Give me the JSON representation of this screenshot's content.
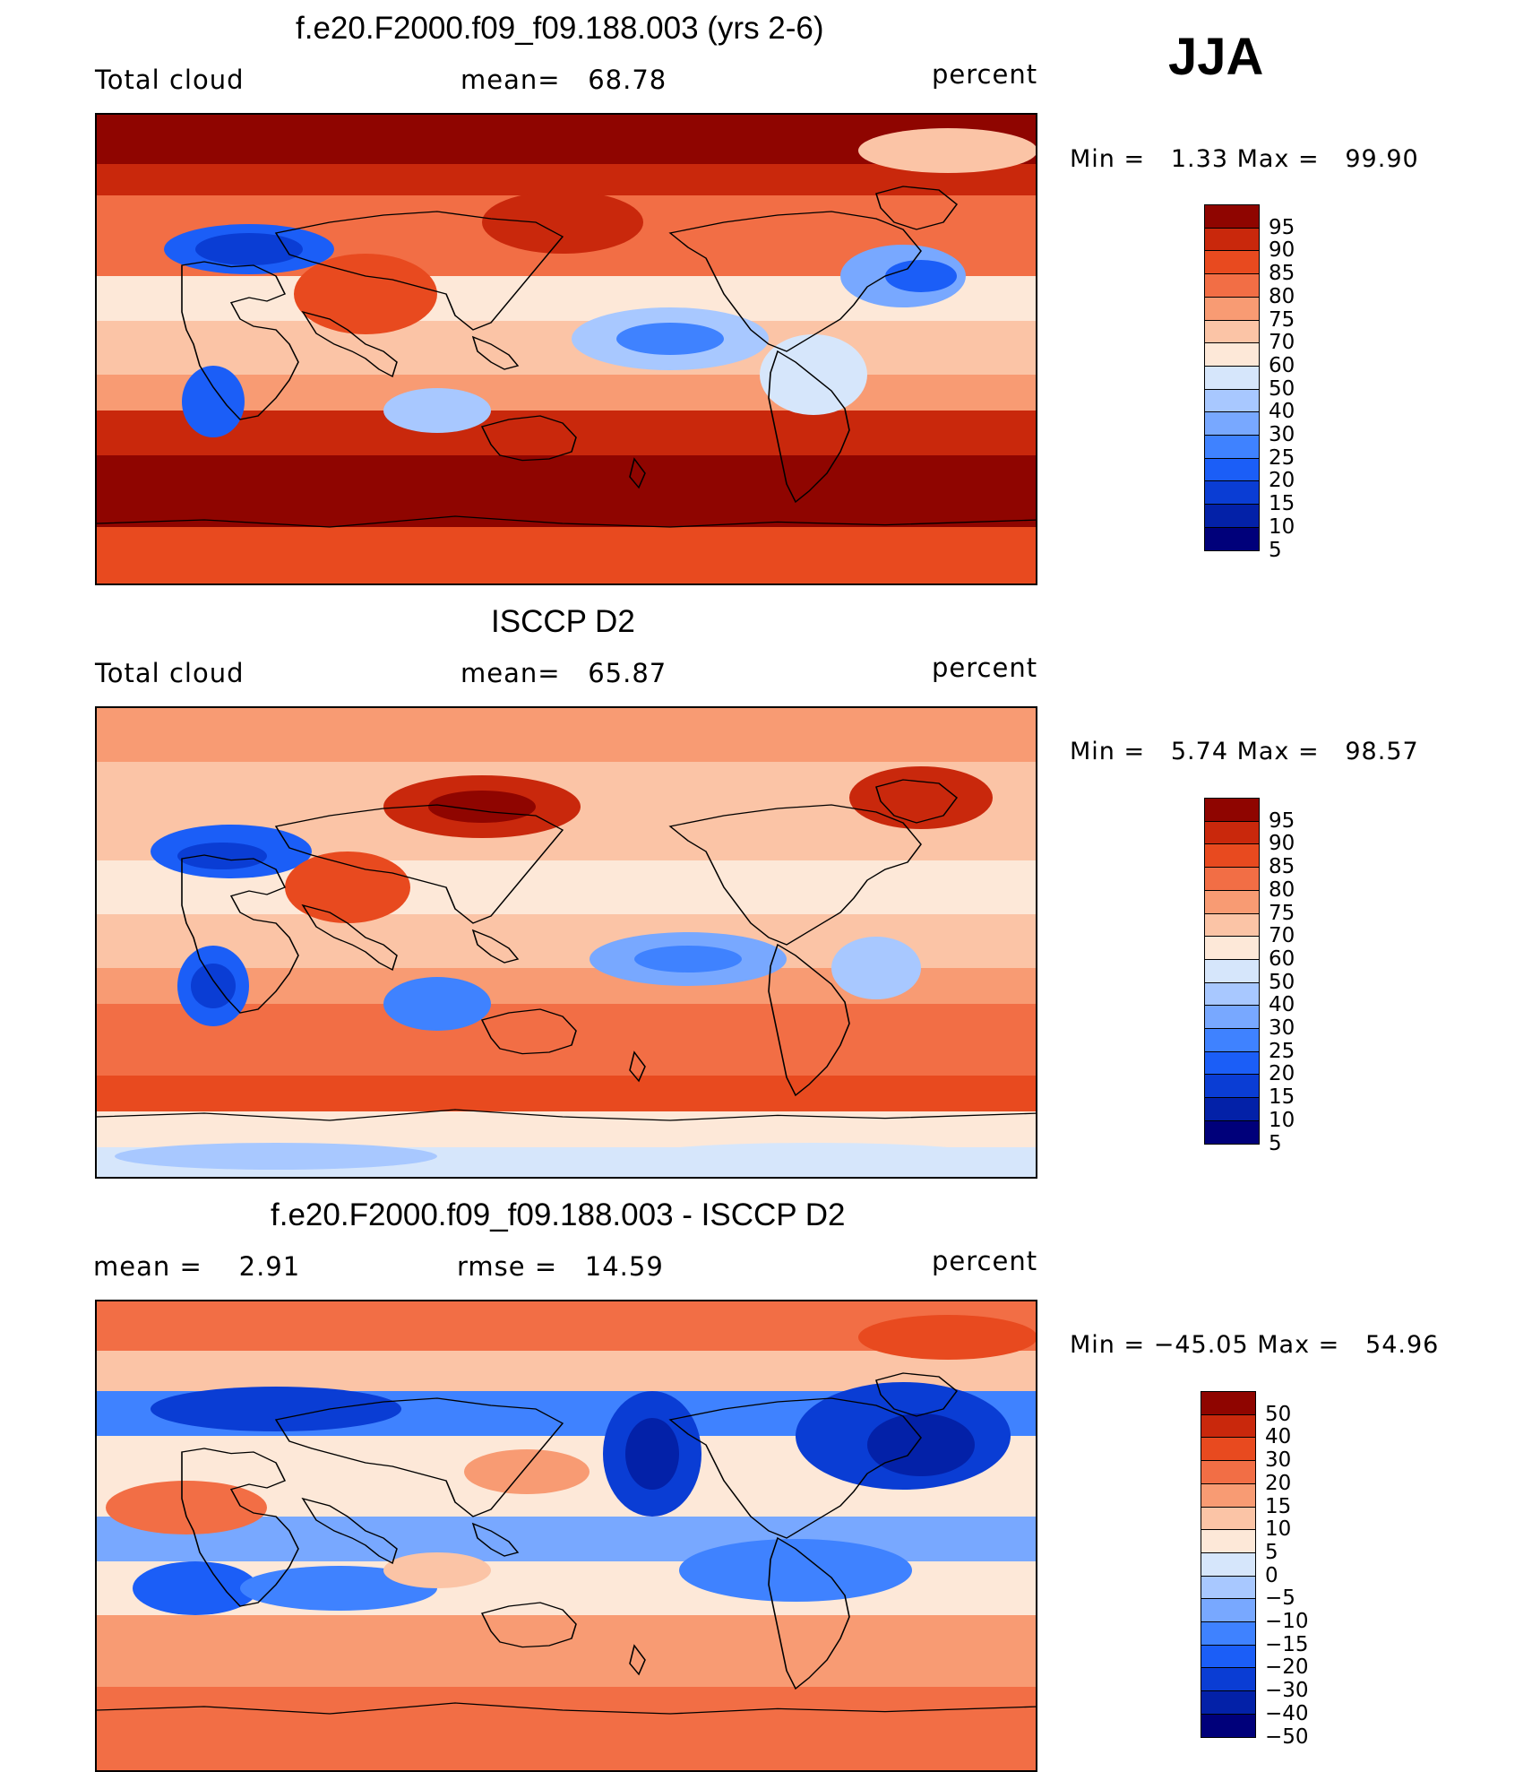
{
  "season": "JJA",
  "colors": {
    "sequential": [
      "#00007a",
      "#0321a8",
      "#0a3dd4",
      "#1b5ef7",
      "#3f82ff",
      "#78a8ff",
      "#a8c8ff",
      "#d6e6fb",
      "#fde8d8",
      "#fbc4a6",
      "#f89b73",
      "#f26e45",
      "#e84a1f",
      "#c9280c",
      "#8f0500"
    ],
    "diverging": [
      "#00007a",
      "#0321a8",
      "#0a3dd4",
      "#1b5ef7",
      "#3f82ff",
      "#78a8ff",
      "#a8c8ff",
      "#d6e6fb",
      "#fde8d8",
      "#fbc4a6",
      "#f89b73",
      "#f26e45",
      "#e84a1f",
      "#c9280c",
      "#8f0500"
    ]
  },
  "panels": [
    {
      "title": "f.e20.F2000.f09_f09.188.003 (yrs 2-6)",
      "left": "Total cloud",
      "center": "mean=   68.78",
      "right": "percent",
      "min_label": "Min =",
      "min": "1.33",
      "max_label": "Max =",
      "max": "99.90",
      "colorbar_labels": [
        "95",
        "90",
        "85",
        "80",
        "75",
        "70",
        "60",
        "50",
        "40",
        "30",
        "25",
        "20",
        "15",
        "10",
        "5"
      ],
      "palette": "sequential"
    },
    {
      "title": "ISCCP D2",
      "left": "Total cloud",
      "center": "mean=   65.87",
      "right": "percent",
      "min_label": "Min =",
      "min": "5.74",
      "max_label": "Max =",
      "max": "98.57",
      "colorbar_labels": [
        "95",
        "90",
        "85",
        "80",
        "75",
        "70",
        "60",
        "50",
        "40",
        "30",
        "25",
        "20",
        "15",
        "10",
        "5"
      ],
      "palette": "sequential"
    },
    {
      "title": "f.e20.F2000.f09_f09.188.003 - ISCCP D2",
      "left": "mean =    2.91",
      "center": "rmse =   14.59",
      "right": "percent",
      "min_label": "Min =",
      "min": "−45.05",
      "max_label": "Max =",
      "max": "54.96",
      "colorbar_labels": [
        "50",
        "40",
        "30",
        "20",
        "15",
        "10",
        "5",
        "0",
        "−5",
        "−10",
        "−15",
        "−20",
        "−30",
        "−40",
        "−50"
      ],
      "palette": "diverging"
    }
  ]
}
